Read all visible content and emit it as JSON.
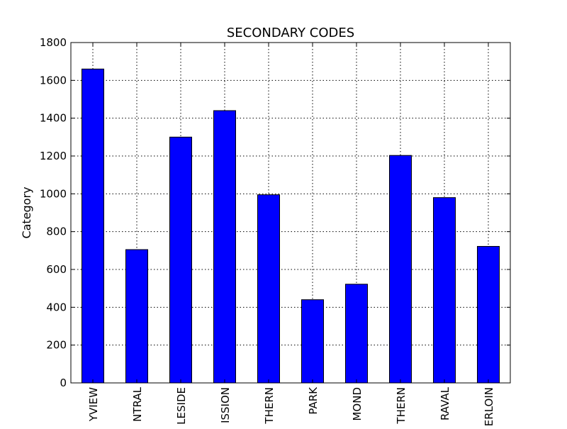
{
  "chart_data": {
    "type": "bar",
    "title": "SECONDARY CODES",
    "xlabel": "",
    "ylabel": "Category",
    "categories": [
      "YVIEW",
      "NTRAL",
      "LESIDE",
      "ISSION",
      "THERN",
      "PARK",
      "MOND",
      "THERN",
      "RAVAL",
      "ERLOIN"
    ],
    "values": [
      1660,
      705,
      1300,
      1440,
      995,
      440,
      522,
      1203,
      980,
      722
    ],
    "ylim": [
      0,
      1800
    ],
    "yticks": [
      0,
      200,
      400,
      600,
      800,
      1000,
      1200,
      1400,
      1600,
      1800
    ],
    "yticklabels": [
      "0",
      "200",
      "400",
      "600",
      "800",
      "1000",
      "1200",
      "1400",
      "1600",
      "1800"
    ],
    "grid": true,
    "legend": "none",
    "bar_color": "#0000ff",
    "edge_color": "#000000",
    "grid_color": "#000000"
  }
}
